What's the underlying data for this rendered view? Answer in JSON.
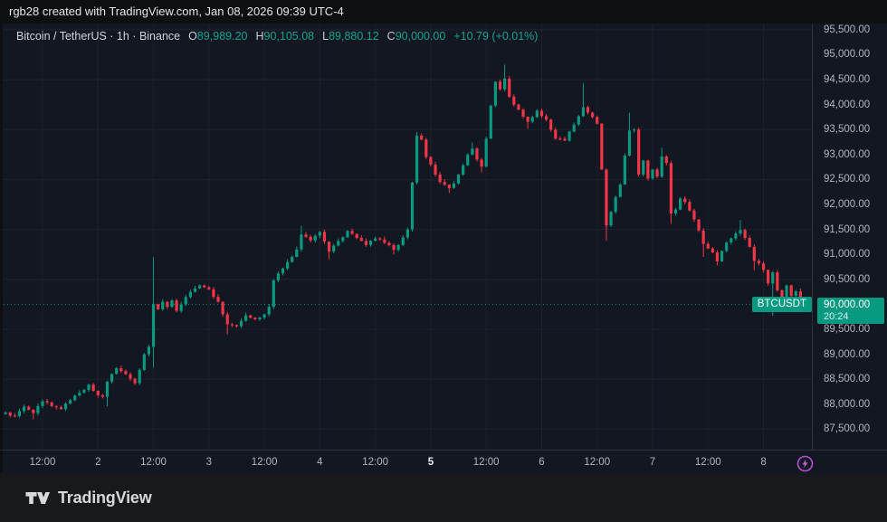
{
  "top_bar": {
    "text": "rgb28 created with TradingView.com, Jan 08, 2026 09:39 UTC-4"
  },
  "legend": {
    "symbol_title": "Bitcoin / TetherUS · 1h · Binance",
    "ohlc": [
      {
        "label": "O",
        "value": "89,989.20"
      },
      {
        "label": "H",
        "value": "90,105.08"
      },
      {
        "label": "L",
        "value": "89,880.12"
      },
      {
        "label": "C",
        "value": "90,000.00"
      }
    ],
    "change": "+10.79 (+0.01%)"
  },
  "price_line": {
    "symbol_label": "BTCUSDT",
    "price_label": "90,000.00",
    "countdown": "20:24",
    "price": 90000
  },
  "footer": {
    "brand": "TradingView"
  },
  "colors": {
    "background_chart": "#131722",
    "background_top": "#0e0f13",
    "background_footer": "#18191c",
    "up": "#089981",
    "down": "#f23645",
    "axis_text": "#b2b5be",
    "grid": "rgba(240,243,250,0.055)",
    "grid_minor": "rgba(240,243,250,0.035)",
    "accent_badge": "#089981",
    "bolt_purple": "#b94fd6"
  },
  "chart_data": {
    "type": "candlestick",
    "symbol": "BTCUSDT",
    "exchange": "Binance",
    "interval": "1h",
    "title": "Bitcoin / TetherUS",
    "last_candle": {
      "open": 89989.2,
      "high": 90105.08,
      "low": 89880.12,
      "close": 90000.0,
      "change": 10.79,
      "change_pct": 0.01
    },
    "current_price": 90000,
    "y_axis": {
      "tick_step": 500,
      "first_tick": 87500,
      "last_tick": 95500,
      "grid_step": 1000,
      "ylim": [
        87090,
        95625
      ],
      "skip_label_price": 90000
    },
    "x_axis": {
      "num_candles": 174,
      "ticks": [
        {
          "i": 8,
          "label": "12:00",
          "major": false,
          "bold": false
        },
        {
          "i": 20,
          "label": "2",
          "major": true,
          "bold": false
        },
        {
          "i": 32,
          "label": "12:00",
          "major": false,
          "bold": false
        },
        {
          "i": 44,
          "label": "3",
          "major": true,
          "bold": false
        },
        {
          "i": 56,
          "label": "12:00",
          "major": false,
          "bold": false
        },
        {
          "i": 68,
          "label": "4",
          "major": true,
          "bold": false
        },
        {
          "i": 80,
          "label": "12:00",
          "major": false,
          "bold": false
        },
        {
          "i": 92,
          "label": "5",
          "major": true,
          "bold": true
        },
        {
          "i": 104,
          "label": "12:00",
          "major": false,
          "bold": false
        },
        {
          "i": 116,
          "label": "6",
          "major": true,
          "bold": false
        },
        {
          "i": 128,
          "label": "12:00",
          "major": false,
          "bold": false
        },
        {
          "i": 140,
          "label": "7",
          "major": true,
          "bold": false
        },
        {
          "i": 152,
          "label": "12:00",
          "major": false,
          "bold": false
        },
        {
          "i": 164,
          "label": "8",
          "major": true,
          "bold": false
        }
      ]
    },
    "keypoints_comment": "estimated hourly closes traced from chart: [candle_index, close, high?, low?]",
    "keypoints": [
      [
        0,
        87830
      ],
      [
        2,
        87760
      ],
      [
        4,
        87950
      ],
      [
        6,
        87820,
        null,
        87700
      ],
      [
        8,
        88060
      ],
      [
        10,
        87960
      ],
      [
        12,
        87900
      ],
      [
        14,
        88080
      ],
      [
        16,
        88230
      ],
      [
        18,
        88390
      ],
      [
        20,
        88180
      ],
      [
        21,
        88150
      ],
      [
        22,
        88450,
        null,
        87960
      ],
      [
        24,
        88720
      ],
      [
        26,
        88600
      ],
      [
        28,
        88420
      ],
      [
        30,
        89000
      ],
      [
        31,
        89150
      ],
      [
        32,
        90000,
        90950,
        88730
      ],
      [
        33,
        89900
      ],
      [
        34,
        90050
      ],
      [
        35,
        89950
      ],
      [
        36,
        90080
      ],
      [
        37,
        89870
      ],
      [
        38,
        90000
      ],
      [
        40,
        90250
      ],
      [
        42,
        90380
      ],
      [
        44,
        90300
      ],
      [
        45,
        90150
      ],
      [
        46,
        90050
      ],
      [
        47,
        89800
      ],
      [
        48,
        89600,
        null,
        89400
      ],
      [
        50,
        89560
      ],
      [
        52,
        89780
      ],
      [
        54,
        89700
      ],
      [
        56,
        89800
      ],
      [
        57,
        89950
      ],
      [
        58,
        90480
      ],
      [
        60,
        90720
      ],
      [
        62,
        90950
      ],
      [
        63,
        91100
      ],
      [
        64,
        91400,
        91570
      ],
      [
        66,
        91280
      ],
      [
        68,
        91450
      ],
      [
        70,
        91060,
        null,
        90900
      ],
      [
        72,
        91270
      ],
      [
        74,
        91470
      ],
      [
        76,
        91330
      ],
      [
        78,
        91190
      ],
      [
        80,
        91320
      ],
      [
        82,
        91230
      ],
      [
        84,
        91090,
        null,
        91000
      ],
      [
        86,
        91340
      ],
      [
        87,
        91500
      ],
      [
        88,
        92440
      ],
      [
        89,
        93380,
        93450
      ],
      [
        90,
        93300
      ],
      [
        91,
        92950
      ],
      [
        92,
        92800
      ],
      [
        93,
        92600
      ],
      [
        94,
        92450
      ],
      [
        96,
        92330,
        null,
        92230
      ],
      [
        97,
        92420
      ],
      [
        98,
        92600
      ],
      [
        100,
        93000
      ],
      [
        101,
        93120,
        93240
      ],
      [
        102,
        92900
      ],
      [
        103,
        92760,
        null,
        92640
      ],
      [
        104,
        93320
      ],
      [
        105,
        93980
      ],
      [
        106,
        94460
      ],
      [
        107,
        94310
      ],
      [
        108,
        94520,
        94800
      ],
      [
        109,
        94160
      ],
      [
        110,
        94000
      ],
      [
        111,
        93900
      ],
      [
        113,
        93660,
        null,
        93520
      ],
      [
        115,
        93880
      ],
      [
        116,
        93770
      ],
      [
        117,
        93700
      ],
      [
        119,
        93320
      ],
      [
        121,
        93280
      ],
      [
        123,
        93600
      ],
      [
        125,
        93950,
        94430
      ],
      [
        127,
        93750
      ],
      [
        128,
        93620
      ],
      [
        129,
        92700
      ],
      [
        130,
        91580,
        null,
        91270
      ],
      [
        131,
        91850
      ],
      [
        132,
        92150
      ],
      [
        133,
        92400
      ],
      [
        134,
        92980
      ],
      [
        135,
        93480,
        93840
      ],
      [
        136,
        93500
      ],
      [
        137,
        92600
      ],
      [
        138,
        92880
      ],
      [
        139,
        92520
      ],
      [
        140,
        92700
      ],
      [
        141,
        92560
      ],
      [
        142,
        92960,
        93140
      ],
      [
        143,
        92830
      ],
      [
        144,
        91820,
        null,
        91610
      ],
      [
        145,
        91900
      ],
      [
        146,
        92120
      ],
      [
        147,
        92050
      ],
      [
        148,
        91880
      ],
      [
        149,
        91700
      ],
      [
        150,
        91480
      ],
      [
        151,
        91210,
        null,
        90950
      ],
      [
        152,
        91120
      ],
      [
        153,
        91040
      ],
      [
        154,
        90860,
        null,
        90780
      ],
      [
        155,
        91070
      ],
      [
        156,
        91240
      ],
      [
        157,
        91320
      ],
      [
        158,
        91420
      ],
      [
        159,
        91490,
        91690
      ],
      [
        160,
        91330
      ],
      [
        161,
        91150
      ],
      [
        162,
        90870,
        null,
        90680
      ],
      [
        163,
        90820
      ],
      [
        164,
        90690
      ],
      [
        165,
        90420
      ],
      [
        166,
        90640,
        null,
        89770
      ],
      [
        167,
        90280
      ],
      [
        168,
        90130
      ],
      [
        169,
        90380
      ],
      [
        170,
        90170
      ],
      [
        171,
        90260
      ],
      [
        172,
        89989
      ],
      [
        173,
        90000,
        90105.08,
        89880.12
      ]
    ]
  }
}
